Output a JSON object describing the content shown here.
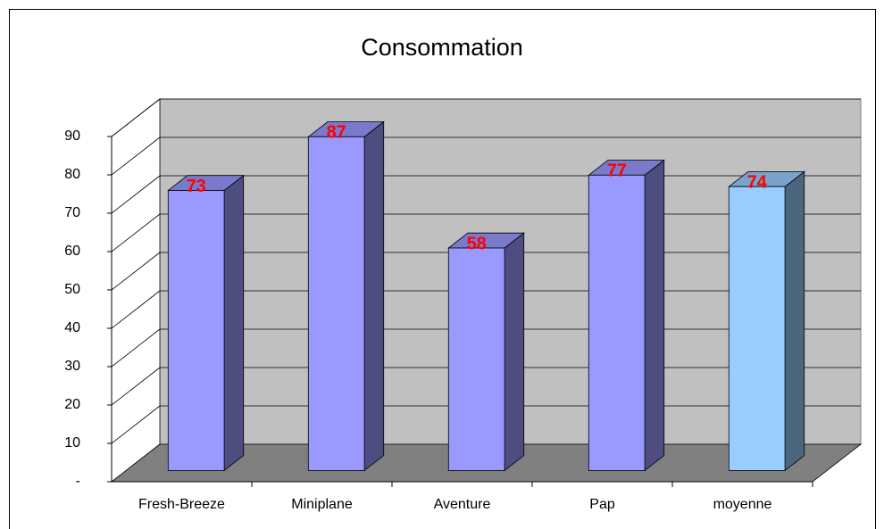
{
  "chart_data": {
    "type": "bar3d",
    "title": "Consommation",
    "categories": [
      "Fresh-Breeze",
      "Miniplane",
      "Aventure",
      "Pap",
      "moyenne"
    ],
    "values": [
      73,
      87,
      58,
      77,
      74
    ],
    "colors": [
      "#9999ff",
      "#9999ff",
      "#9999ff",
      "#9999ff",
      "#99ccff"
    ],
    "value_label_color": "#ff0000",
    "ylim": [
      0,
      90
    ],
    "yticks": [
      {
        "value": 0,
        "label": "-"
      },
      10,
      20,
      30,
      40,
      50,
      60,
      70,
      80,
      90
    ],
    "grid": true
  }
}
